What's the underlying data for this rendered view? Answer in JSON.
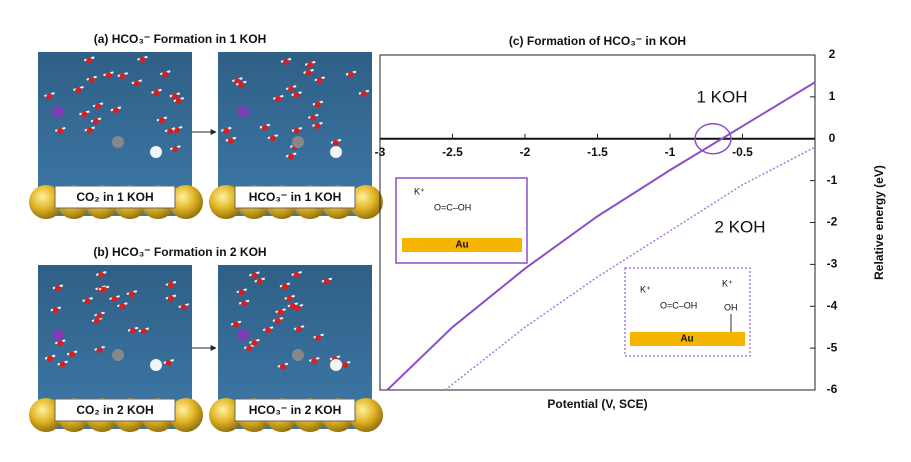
{
  "panels": [
    {
      "title": "(a) HCO₃⁻ Formation in 1 KOH",
      "labels": [
        "CO₂ in 1 KOH",
        "HCO₃⁻ in 1 KOH"
      ]
    },
    {
      "title": "(b) HCO₃⁻ Formation in 2 KOH",
      "labels": [
        "CO₂ in 2 KOH",
        "HCO₃⁻ in 2 KOH"
      ]
    }
  ],
  "chart_data": {
    "type": "line",
    "title": "(c) Formation of HCO₃⁻ in KOH",
    "x_label": "Potential (V, SCE)",
    "y_label": "Relative energy (eV)",
    "xlim": [
      -3,
      0
    ],
    "xticks": [
      -3,
      -2.5,
      -2,
      -1.5,
      -1,
      -0.5
    ],
    "ylim": [
      -6,
      2
    ],
    "yticks": [
      -6,
      -5,
      -4,
      -3,
      -2,
      -1,
      0,
      1,
      2
    ],
    "series": [
      {
        "name": "1 KOH",
        "color": "#8a4fc9",
        "style": "solid",
        "x": [
          -2.95,
          -2.5,
          -2,
          -1.5,
          -1,
          -0.5,
          0
        ],
        "values": [
          -6,
          -4.5,
          -3.1,
          -1.85,
          -0.75,
          0.3,
          1.35
        ]
      },
      {
        "name": "2 KOH",
        "color": "#a97ad8",
        "style": "dotted",
        "x": [
          -2.55,
          -2,
          -1.5,
          -1,
          -0.5,
          0
        ],
        "values": [
          -6,
          -4.5,
          -3.3,
          -2.2,
          -1.1,
          -0.2
        ]
      }
    ],
    "insets": [
      {
        "ion": "K⁺",
        "molecule": "O=C–OH",
        "surface": "Au"
      },
      {
        "ion": "K⁺",
        "molecule": "O=C–OH",
        "ion2": "K⁺",
        "group": "OH",
        "surface": "Au"
      }
    ]
  }
}
